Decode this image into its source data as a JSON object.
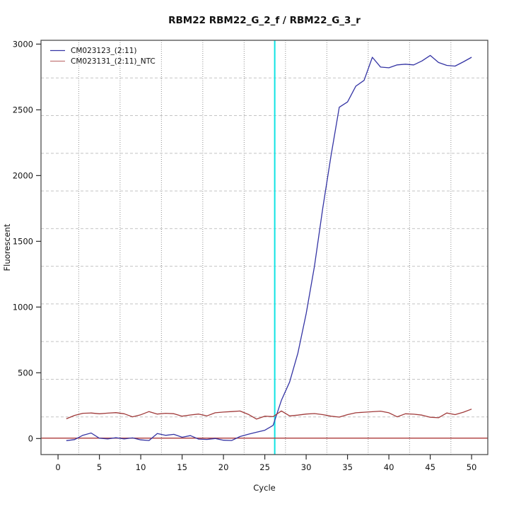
{
  "window": {
    "background": "#ffffff"
  },
  "chart_data": {
    "type": "line",
    "title": "RBM22  RBM22_G_2_f / RBM22_G_3_r",
    "xlabel": "Cycle",
    "ylabel": "Fluorescent",
    "xlim": [
      -2.06,
      51.96
    ],
    "ylim": [
      -122,
      3029
    ],
    "x_ticks": [
      0,
      5,
      10,
      15,
      20,
      25,
      30,
      35,
      40,
      45,
      50
    ],
    "y_ticks": [
      0,
      500,
      1000,
      1500,
      2000,
      2500,
      3000
    ],
    "cycles": [
      1,
      2,
      3,
      4,
      5,
      6,
      7,
      8,
      9,
      10,
      11,
      12,
      13,
      14,
      15,
      16,
      17,
      18,
      19,
      20,
      21,
      22,
      23,
      24,
      25,
      26,
      27,
      28,
      29,
      30,
      31,
      32,
      33,
      34,
      35,
      36,
      37,
      38,
      39,
      40,
      41,
      42,
      43,
      44,
      45,
      46,
      47,
      48,
      49,
      50
    ],
    "series": [
      {
        "name": "CM023123_(2:11)",
        "color": "#3434A4",
        "values": [
          -16,
          -8,
          25,
          42,
          2,
          -3,
          6,
          -3,
          5,
          -10,
          -15,
          38,
          24,
          32,
          10,
          22,
          -4,
          -7,
          0,
          -13,
          -15,
          15,
          33,
          48,
          63,
          100,
          290,
          430,
          650,
          950,
          1310,
          1750,
          2150,
          2520,
          2560,
          2680,
          2724,
          2900,
          2825,
          2820,
          2842,
          2847,
          2842,
          2872,
          2914,
          2860,
          2838,
          2833,
          2865,
          2900
        ]
      },
      {
        "name": "CM023131_(2:11)_NTC",
        "color": "#A03A3A",
        "values": [
          150,
          176,
          192,
          194,
          188,
          193,
          197,
          188,
          165,
          181,
          205,
          186,
          192,
          189,
          170,
          179,
          186,
          172,
          196,
          201,
          205,
          209,
          184,
          148,
          170,
          166,
          210,
          172,
          178,
          186,
          190,
          182,
          170,
          163,
          182,
          196,
          200,
          204,
          208,
          196,
          165,
          188,
          185,
          178,
          162,
          158,
          194,
          182,
          200,
          224
        ]
      }
    ],
    "legend": {
      "position": "top-left",
      "entries": [
        {
          "label": "CM023123_(2:11)",
          "color": "#3434A4"
        },
        {
          "label": "CM023131_(2:11)_NTC",
          "color": "#C27878"
        }
      ]
    },
    "threshold_line": {
      "value": 3,
      "color": "#B34A4A"
    },
    "ct_line": {
      "cycle": 26.2,
      "color": "#0FE3E3"
    },
    "grid": {
      "v_line_cycles": [
        2.5,
        7.5,
        12.5,
        17.5,
        22.5,
        27.5,
        32.5,
        37.5,
        42.5,
        47.5
      ],
      "h_divisions": 11,
      "v_color": "#8f8f8f",
      "h_color": "#c4c4c4"
    },
    "axis_color": "#4d4d4d",
    "tick_color": "#2a2a2a"
  }
}
